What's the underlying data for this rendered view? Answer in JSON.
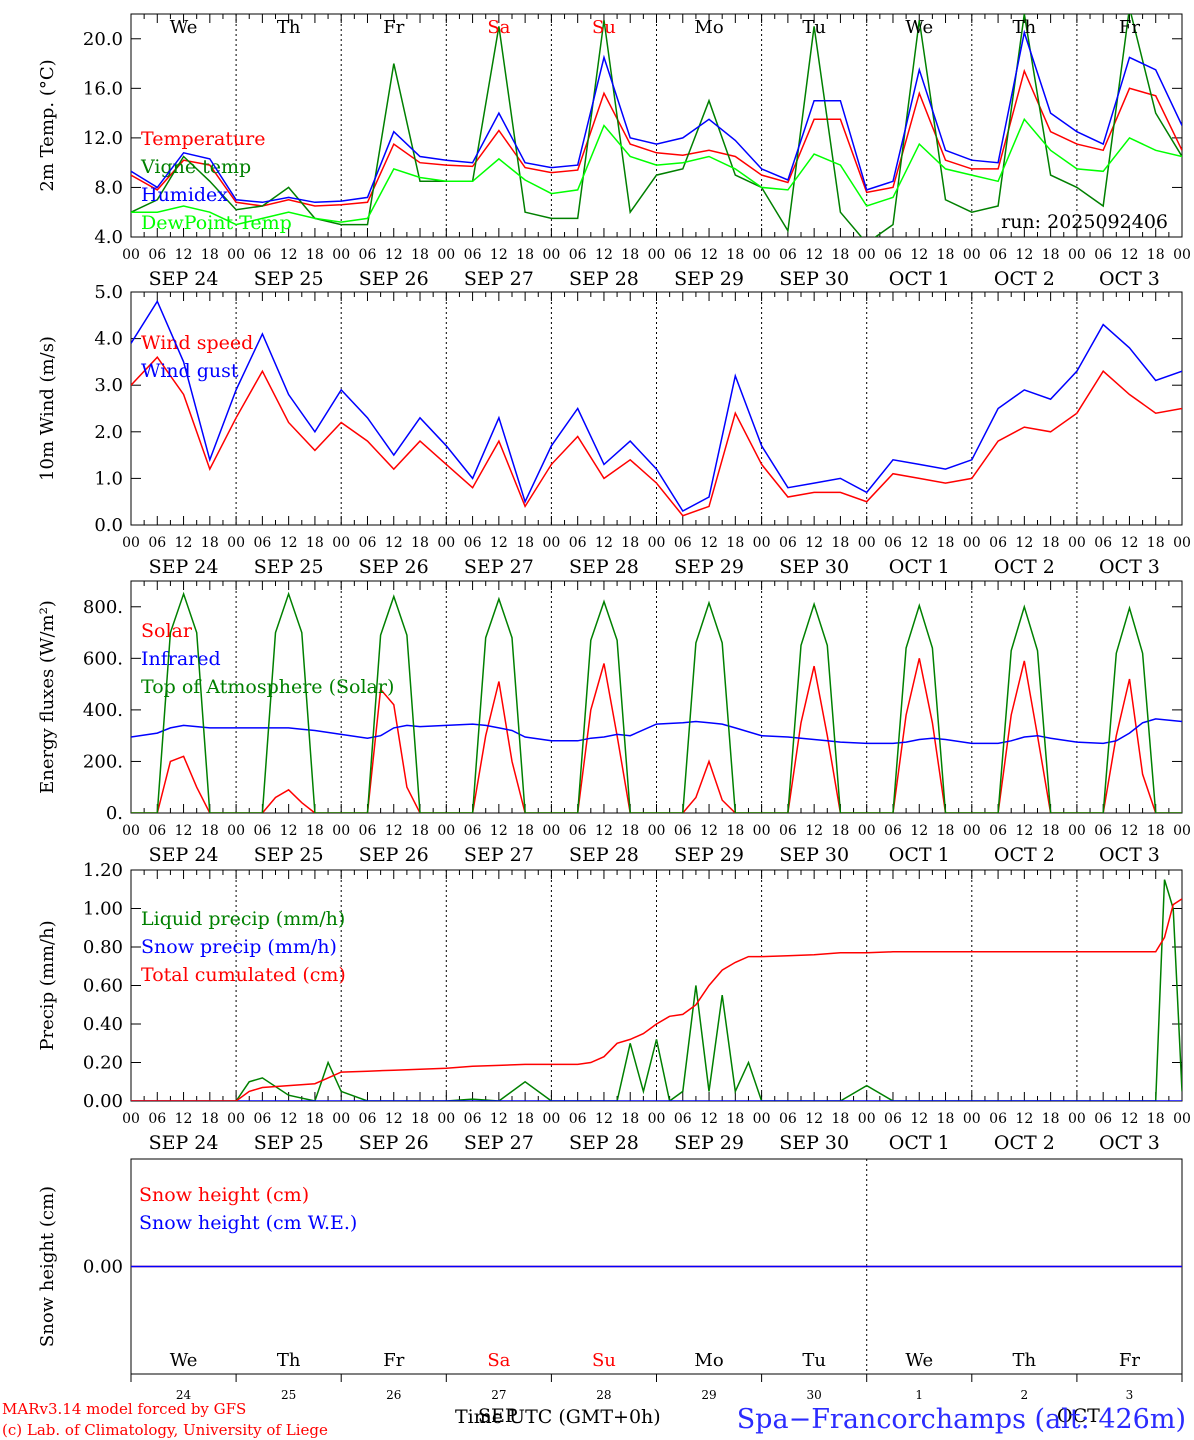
{
  "footer": {
    "model_line": "MARv3.14 model forced by GFS",
    "copyright_line": "(c) Lab. of Climatology, University of Liege",
    "x_title": "Time UTC (GMT+0h)",
    "month_overlay_a": "SEP",
    "month_overlay_b": "OCT",
    "station": "Spa−Francorchamps (alt: 426m)"
  },
  "time_axis": {
    "hour_labels": [
      "00",
      "06",
      "12",
      "18"
    ],
    "final_label": "00",
    "date_labels": [
      "SEP 24",
      "SEP 25",
      "SEP 26",
      "SEP 27",
      "SEP 28",
      "SEP 29",
      "SEP 30",
      "OCT  1",
      "OCT  2",
      "OCT  3"
    ],
    "day_names": [
      "We",
      "Th",
      "Fr",
      "Sa",
      "Su",
      "Mo",
      "Tu",
      "We",
      "Th",
      "Fr"
    ],
    "day_name_colors": [
      "#000000",
      "#000000",
      "#000000",
      "#ff0000",
      "#ff0000",
      "#000000",
      "#000000",
      "#000000",
      "#000000",
      "#000000"
    ],
    "day_numbers": [
      "24",
      "25",
      "26",
      "27",
      "28",
      "29",
      "30",
      "1",
      "2",
      "3"
    ]
  },
  "chart_data": [
    {
      "type": "line",
      "ylabel": "2m Temp. (°C)",
      "ylim": [
        4.0,
        22.0
      ],
      "yticks": [
        "4.0",
        "8.0",
        "12.0",
        "16.0",
        "20.0"
      ],
      "note": "run: 2025092406",
      "x": [
        0,
        6,
        12,
        18,
        24,
        30,
        36,
        42,
        48,
        54,
        60,
        66,
        72,
        78,
        84,
        90,
        96,
        102,
        108,
        114,
        120,
        126,
        132,
        138,
        144,
        150,
        156,
        162,
        168,
        174,
        180,
        186,
        192,
        198,
        204,
        210,
        216,
        222,
        228,
        234,
        240
      ],
      "series": [
        {
          "name": "Temperature",
          "color": "#ff0000",
          "values": [
            9.0,
            7.8,
            10.2,
            9.8,
            6.8,
            6.5,
            7.0,
            6.5,
            6.6,
            6.8,
            11.5,
            10.0,
            9.8,
            9.7,
            12.6,
            9.6,
            9.2,
            9.4,
            15.6,
            11.5,
            10.8,
            10.6,
            11.0,
            10.5,
            9.0,
            8.4,
            13.5,
            13.5,
            7.6,
            8.0,
            15.6,
            10.2,
            9.5,
            9.5,
            17.4,
            12.5,
            11.5,
            11.0,
            16.0,
            15.4,
            11.0
          ]
        },
        {
          "name": "Vigne temp",
          "color": "#008000",
          "values": [
            6.0,
            7.0,
            10.5,
            8.5,
            6.2,
            6.5,
            8.0,
            5.5,
            5.0,
            5.0,
            18.0,
            8.5,
            8.5,
            8.5,
            21.0,
            6.0,
            5.5,
            5.5,
            21.5,
            6.0,
            9.0,
            9.5,
            15.0,
            9.0,
            8.0,
            4.5,
            21.0,
            6.0,
            3.5,
            5.0,
            21.5,
            7.0,
            6.0,
            6.5,
            22.0,
            9.0,
            8.0,
            6.5,
            22.5,
            14.0,
            10.5
          ]
        },
        {
          "name": "Humidex",
          "color": "#0000ff",
          "values": [
            9.3,
            8.0,
            10.8,
            10.3,
            7.0,
            6.8,
            7.2,
            6.8,
            6.9,
            7.2,
            12.5,
            10.5,
            10.2,
            10.0,
            14.0,
            10.0,
            9.6,
            9.8,
            18.5,
            12.0,
            11.5,
            12.0,
            13.5,
            11.8,
            9.5,
            8.6,
            15.0,
            15.0,
            7.8,
            8.5,
            17.5,
            11.0,
            10.2,
            10.0,
            20.5,
            14.0,
            12.5,
            11.5,
            18.5,
            17.5,
            13.0
          ]
        },
        {
          "name": "DewPoint Temp",
          "color": "#00ff00",
          "values": [
            6.0,
            6.0,
            6.5,
            6.0,
            5.0,
            5.5,
            6.0,
            5.5,
            5.2,
            5.5,
            9.5,
            8.8,
            8.5,
            8.5,
            10.3,
            8.6,
            7.5,
            7.8,
            13.0,
            10.5,
            9.8,
            10.0,
            10.5,
            9.5,
            8.0,
            7.8,
            10.7,
            9.8,
            6.5,
            7.2,
            11.5,
            9.5,
            9.0,
            8.5,
            13.5,
            11.0,
            9.5,
            9.3,
            12.0,
            11.0,
            10.5
          ]
        }
      ]
    },
    {
      "type": "line",
      "ylabel": "10m Wind (m/s)",
      "ylim": [
        0.0,
        5.0
      ],
      "yticks": [
        "0.0",
        "1.0",
        "2.0",
        "3.0",
        "4.0",
        "5.0"
      ],
      "x": [
        0,
        6,
        12,
        18,
        24,
        30,
        36,
        42,
        48,
        54,
        60,
        66,
        72,
        78,
        84,
        90,
        96,
        102,
        108,
        114,
        120,
        126,
        132,
        138,
        144,
        150,
        156,
        162,
        168,
        174,
        180,
        186,
        192,
        198,
        204,
        210,
        216,
        222,
        228,
        234,
        240
      ],
      "series": [
        {
          "name": "Wind speed",
          "color": "#ff0000",
          "values": [
            3.0,
            3.6,
            2.8,
            1.2,
            2.3,
            3.3,
            2.2,
            1.6,
            2.2,
            1.8,
            1.2,
            1.8,
            1.3,
            0.8,
            1.8,
            0.4,
            1.3,
            1.9,
            1.0,
            1.4,
            0.9,
            0.2,
            0.4,
            2.4,
            1.3,
            0.6,
            0.7,
            0.7,
            0.5,
            1.1,
            1.0,
            0.9,
            1.0,
            1.8,
            2.1,
            2.0,
            2.4,
            3.3,
            2.8,
            2.4,
            2.5
          ]
        },
        {
          "name": "Wind gust",
          "color": "#0000ff",
          "values": [
            3.9,
            4.8,
            3.5,
            1.4,
            2.9,
            4.1,
            2.8,
            2.0,
            2.9,
            2.3,
            1.5,
            2.3,
            1.7,
            1.0,
            2.3,
            0.5,
            1.7,
            2.5,
            1.3,
            1.8,
            1.2,
            0.3,
            0.6,
            3.2,
            1.7,
            0.8,
            0.9,
            1.0,
            0.7,
            1.4,
            1.3,
            1.2,
            1.4,
            2.5,
            2.9,
            2.7,
            3.3,
            4.3,
            3.8,
            3.1,
            3.3
          ]
        }
      ]
    },
    {
      "type": "line",
      "ylabel": "Energy fluxes (W/m²)",
      "ylim": [
        0,
        900
      ],
      "yticks": [
        "0.",
        "200.",
        "400.",
        "600.",
        "800."
      ],
      "x": [
        0,
        6,
        9,
        12,
        15,
        18,
        24,
        30,
        33,
        36,
        39,
        42,
        48,
        54,
        57,
        60,
        63,
        66,
        72,
        78,
        81,
        84,
        87,
        90,
        96,
        102,
        105,
        108,
        111,
        114,
        120,
        126,
        129,
        132,
        135,
        138,
        144,
        150,
        153,
        156,
        159,
        162,
        168,
        174,
        177,
        180,
        183,
        186,
        192,
        198,
        201,
        204,
        207,
        210,
        216,
        222,
        225,
        228,
        231,
        234,
        240
      ],
      "series": [
        {
          "name": "Solar",
          "color": "#ff0000",
          "values": [
            0,
            0,
            200,
            220,
            100,
            0,
            0,
            0,
            60,
            90,
            40,
            0,
            0,
            0,
            480,
            420,
            100,
            0,
            0,
            0,
            300,
            510,
            200,
            0,
            0,
            0,
            400,
            580,
            300,
            0,
            0,
            0,
            60,
            200,
            50,
            0,
            0,
            0,
            350,
            570,
            300,
            0,
            0,
            0,
            380,
            600,
            350,
            0,
            0,
            0,
            380,
            590,
            300,
            0,
            0,
            0,
            300,
            520,
            150,
            0,
            0
          ]
        },
        {
          "name": "Infrared",
          "color": "#0000ff",
          "values": [
            295,
            310,
            330,
            340,
            335,
            330,
            330,
            330,
            330,
            330,
            325,
            320,
            305,
            290,
            300,
            330,
            340,
            335,
            340,
            345,
            340,
            330,
            320,
            295,
            280,
            280,
            290,
            295,
            305,
            300,
            345,
            350,
            355,
            350,
            345,
            330,
            300,
            295,
            290,
            285,
            280,
            275,
            270,
            270,
            275,
            285,
            290,
            285,
            270,
            270,
            280,
            295,
            300,
            290,
            275,
            270,
            280,
            310,
            350,
            365,
            355
          ]
        },
        {
          "name": "Top of Atmosphere (Solar)",
          "color": "#008000",
          "values": [
            0,
            0,
            700,
            850,
            700,
            0,
            0,
            0,
            700,
            850,
            700,
            0,
            0,
            0,
            690,
            840,
            690,
            0,
            0,
            0,
            680,
            830,
            680,
            0,
            0,
            0,
            670,
            820,
            670,
            0,
            0,
            0,
            660,
            815,
            660,
            0,
            0,
            0,
            650,
            810,
            650,
            0,
            0,
            0,
            640,
            805,
            640,
            0,
            0,
            0,
            630,
            800,
            630,
            0,
            0,
            0,
            620,
            795,
            620,
            0,
            0
          ]
        }
      ]
    },
    {
      "type": "line",
      "ylabel": "Precip (mm/h)",
      "ylim": [
        0.0,
        1.2
      ],
      "yticks": [
        "0.00",
        "0.20",
        "0.40",
        "0.60",
        "0.80",
        "1.00",
        "1.20"
      ],
      "x": [
        0,
        6,
        12,
        18,
        24,
        27,
        30,
        36,
        42,
        45,
        48,
        54,
        60,
        66,
        72,
        78,
        84,
        90,
        96,
        102,
        105,
        108,
        111,
        114,
        117,
        120,
        123,
        126,
        129,
        132,
        135,
        138,
        141,
        144,
        150,
        156,
        162,
        168,
        174,
        180,
        186,
        192,
        198,
        204,
        210,
        216,
        222,
        228,
        234,
        236,
        238,
        240
      ],
      "series": [
        {
          "name": "Liquid precip (mm/h)",
          "color": "#008000",
          "values": [
            0,
            0,
            0,
            0,
            0,
            0.1,
            0.12,
            0.03,
            0,
            0.2,
            0.05,
            0,
            0,
            0,
            0,
            0.01,
            0,
            0.1,
            0,
            0,
            0,
            0,
            0,
            0.3,
            0.05,
            0.32,
            0,
            0.05,
            0.6,
            0.05,
            0.55,
            0.05,
            0.2,
            0,
            0,
            0,
            0,
            0.08,
            0,
            0,
            0,
            0,
            0,
            0,
            0,
            0,
            0,
            0,
            0,
            1.15,
            1.0,
            0.05
          ]
        },
        {
          "name": "Snow precip (mm/h)",
          "color": "#0000ff",
          "values": [
            0,
            0,
            0,
            0,
            0,
            0,
            0,
            0,
            0,
            0,
            0,
            0,
            0,
            0,
            0,
            0,
            0,
            0,
            0,
            0,
            0,
            0,
            0,
            0,
            0,
            0,
            0,
            0,
            0,
            0,
            0,
            0,
            0,
            0,
            0,
            0,
            0,
            0,
            0,
            0,
            0,
            0,
            0,
            0,
            0,
            0,
            0,
            0,
            0,
            0,
            0,
            0
          ]
        },
        {
          "name": "Total cumulated (cm)",
          "color": "#ff0000",
          "values": [
            0,
            0,
            0,
            0,
            0,
            0.05,
            0.07,
            0.08,
            0.09,
            0.12,
            0.15,
            0.155,
            0.16,
            0.165,
            0.17,
            0.18,
            0.185,
            0.19,
            0.19,
            0.19,
            0.2,
            0.23,
            0.3,
            0.32,
            0.35,
            0.4,
            0.44,
            0.45,
            0.5,
            0.6,
            0.68,
            0.72,
            0.75,
            0.75,
            0.755,
            0.76,
            0.77,
            0.77,
            0.775,
            0.775,
            0.775,
            0.775,
            0.775,
            0.775,
            0.775,
            0.775,
            0.775,
            0.775,
            0.775,
            0.85,
            1.02,
            1.05
          ]
        }
      ]
    },
    {
      "type": "line",
      "ylabel": "Snow height (cm)",
      "yticks": [
        "0.00"
      ],
      "x": [
        0,
        240
      ],
      "series": [
        {
          "name": "Snow height (cm)",
          "color": "#ff0000",
          "values": [
            0,
            0
          ]
        },
        {
          "name": "Snow height (cm W.E.)",
          "color": "#0000ff",
          "values": [
            0,
            0
          ]
        }
      ]
    }
  ]
}
